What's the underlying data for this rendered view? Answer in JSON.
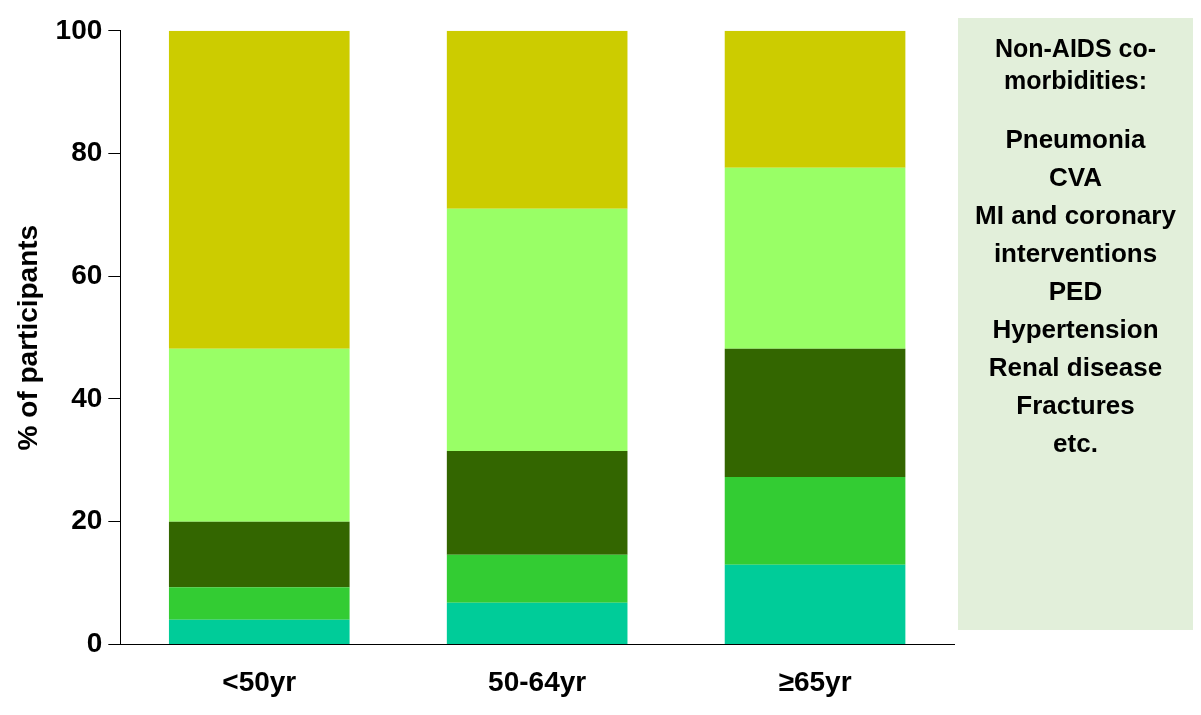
{
  "chart_data": {
    "type": "bar",
    "stacked": true,
    "ylabel": "% of participants",
    "categories": [
      "<50yr",
      "50-64yr",
      "≥65yr"
    ],
    "series": [
      {
        "color": "#00cc99",
        "values": [
          4,
          6.8,
          13
        ]
      },
      {
        "color": "#33cc33",
        "values": [
          5.3,
          7.8,
          14.3
        ]
      },
      {
        "color": "#336600",
        "values": [
          10.7,
          16.9,
          20.9
        ]
      },
      {
        "color": "#99ff66",
        "values": [
          28.2,
          39.5,
          29.5
        ]
      },
      {
        "color": "#cccc00",
        "values": [
          51.8,
          29,
          22.3
        ]
      }
    ],
    "ylim": [
      0,
      100
    ],
    "yticks": [
      0,
      20,
      40,
      60,
      80,
      100
    ],
    "grid": false,
    "legend": false,
    "annotations": [
      "Non-AIDS co-morbidities:",
      "Pneumonia",
      "CVA",
      "MI and coronary interventions",
      "PED",
      "Hypertension",
      "Renal disease",
      "Fractures",
      "etc."
    ]
  }
}
